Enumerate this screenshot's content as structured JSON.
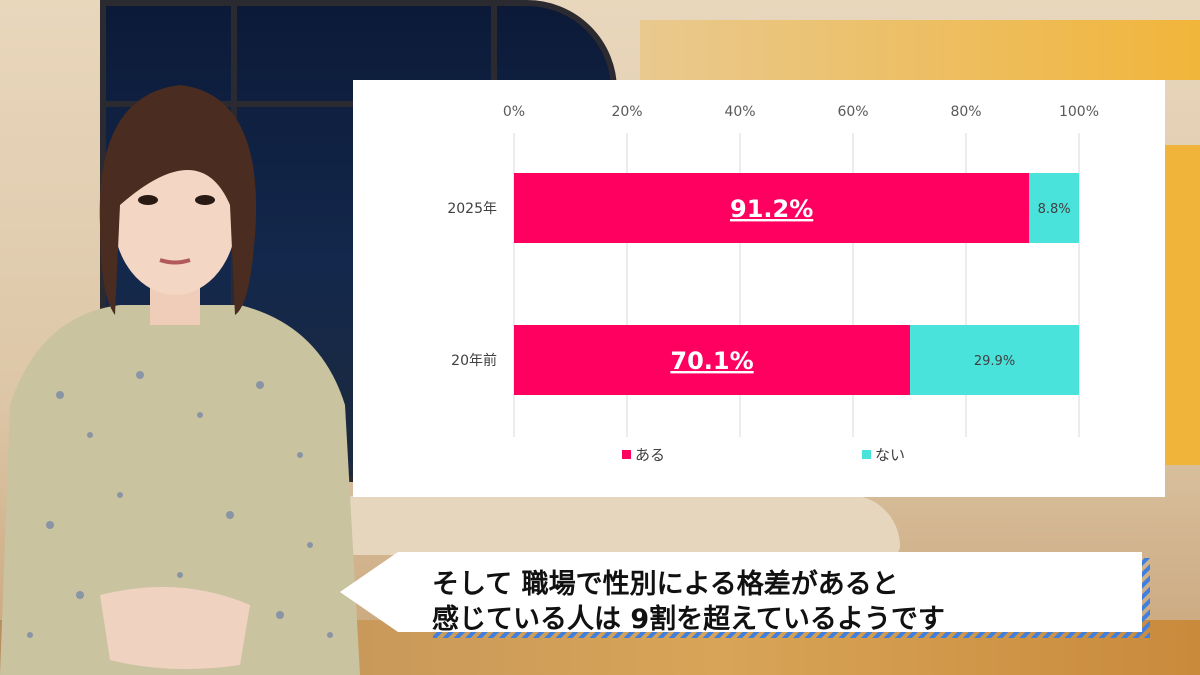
{
  "chart_data": {
    "type": "bar",
    "orientation": "horizontal",
    "stacked": true,
    "categories": [
      "2025年",
      "20年前"
    ],
    "series": [
      {
        "name": "ある",
        "values": [
          91.2,
          70.1
        ],
        "labels": [
          "91.2%",
          "70.1%"
        ],
        "color": "#ff0060"
      },
      {
        "name": "ない",
        "values": [
          8.8,
          29.9
        ],
        "labels": [
          "8.8%",
          "29.9%"
        ],
        "color": "#4ae3dc"
      }
    ],
    "xlim": [
      0,
      100
    ],
    "xticks": [
      "0%",
      "20%",
      "40%",
      "60%",
      "80%",
      "100%"
    ],
    "grid": true,
    "legend": "bottom",
    "title": "",
    "xlabel": "",
    "ylabel": ""
  },
  "caption": {
    "line1": "そして 職場で性別による格差があると",
    "line2": "感じている人は 9割を超えているようです",
    "stripe_color": "#3f7fe0"
  }
}
